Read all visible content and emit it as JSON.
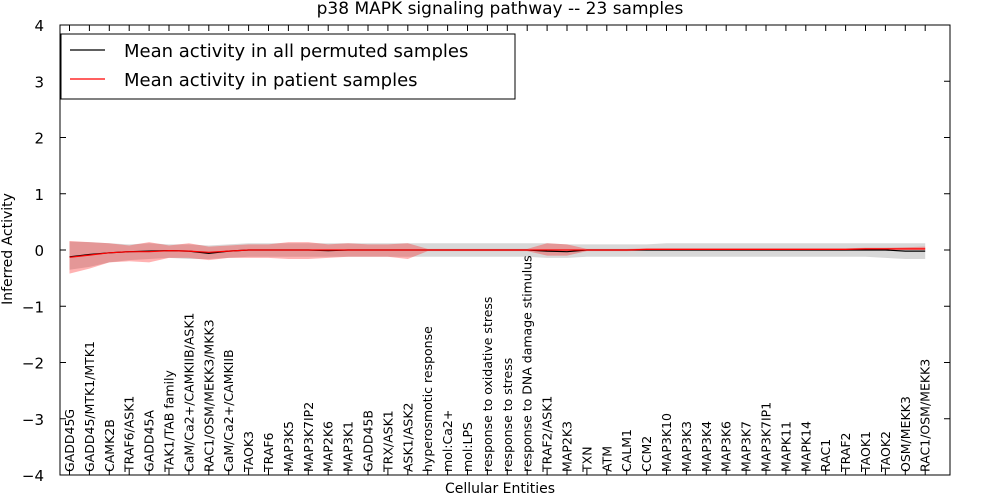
{
  "chart_data": {
    "type": "line",
    "title": "p38 MAPK signaling pathway -- 23 samples",
    "xlabel": "Cellular Entities",
    "ylabel": "Inferred Activity",
    "ylim": [
      -4,
      4
    ],
    "yticks": [
      4,
      3,
      2,
      1,
      0,
      -1,
      -2,
      -3,
      -4
    ],
    "ytick_labels": [
      "4",
      "3",
      "2",
      "1",
      "0",
      "−1",
      "−2",
      "−3",
      "−4"
    ],
    "grid": false,
    "legend_position": "top-left",
    "categories": [
      "GADD45G",
      "GADD45/MTK1/MTK1",
      "CAMK2B",
      "TRAF6/ASK1",
      "GADD45A",
      "TAK1/TAB family",
      "CaM/Ca2+/CAMKIIB/ASK1",
      "RAC1/OSM/MEKK3/MKK3",
      "CaM/Ca2+/CAMKIIB",
      "TAOK3",
      "TRAF6",
      "MAP3K5",
      "MAP3K7IP2",
      "MAP2K6",
      "MAP3K1",
      "GADD45B",
      "TRX/ASK1",
      "ASK1/ASK2",
      "hyperosmotic response",
      "mol:Ca2+",
      "mol:LPS",
      "response to oxidative stress",
      "response to stress",
      "response to DNA damage stimulus",
      "TRAF2/ASK1",
      "MAP2K3",
      "TXN",
      "ATM",
      "CALM1",
      "CCM2",
      "MAP3K10",
      "MAP3K3",
      "MAP3K4",
      "MAP3K6",
      "MAP3K7",
      "MAP3K7IP1",
      "MAPK11",
      "MAPK14",
      "RAC1",
      "TRAF2",
      "TAOK1",
      "TAOK2",
      "OSM/MEKK3",
      "RAC1/OSM/MEKK3"
    ],
    "series": [
      {
        "name": "Mean activity in all permuted samples",
        "color": "#000000",
        "band_color": "#c8c8c8",
        "values": [
          -0.12,
          -0.08,
          -0.05,
          -0.03,
          -0.02,
          -0.01,
          -0.02,
          -0.06,
          -0.02,
          0.0,
          0.0,
          0.0,
          0.0,
          -0.01,
          0.0,
          0.0,
          0.0,
          0.0,
          0.0,
          0.0,
          0.0,
          0.0,
          0.0,
          0.0,
          -0.02,
          -0.03,
          0.0,
          0.0,
          0.0,
          0.0,
          0.0,
          0.0,
          0.0,
          0.0,
          0.0,
          0.0,
          0.0,
          0.0,
          0.0,
          0.0,
          0.0,
          0.0,
          -0.02,
          -0.02
        ],
        "upper": [
          0.15,
          0.14,
          0.12,
          0.1,
          0.12,
          0.1,
          0.1,
          0.08,
          0.1,
          0.12,
          0.12,
          0.12,
          0.12,
          0.12,
          0.12,
          0.12,
          0.12,
          0.12,
          0.12,
          0.12,
          0.12,
          0.12,
          0.12,
          0.12,
          0.12,
          0.1,
          0.1,
          0.1,
          0.1,
          0.1,
          0.12,
          0.12,
          0.12,
          0.12,
          0.12,
          0.12,
          0.12,
          0.12,
          0.12,
          0.12,
          0.12,
          0.12,
          0.12,
          0.12
        ],
        "lower": [
          -0.35,
          -0.3,
          -0.22,
          -0.18,
          -0.16,
          -0.14,
          -0.16,
          -0.16,
          -0.14,
          -0.12,
          -0.12,
          -0.12,
          -0.12,
          -0.12,
          -0.12,
          -0.12,
          -0.12,
          -0.12,
          -0.12,
          -0.12,
          -0.12,
          -0.12,
          -0.12,
          -0.12,
          -0.14,
          -0.14,
          -0.12,
          -0.12,
          -0.12,
          -0.12,
          -0.12,
          -0.12,
          -0.12,
          -0.12,
          -0.12,
          -0.12,
          -0.12,
          -0.12,
          -0.12,
          -0.12,
          -0.12,
          -0.14,
          -0.16,
          -0.16
        ]
      },
      {
        "name": "Mean activity in patient samples",
        "color": "#ff0000",
        "band_color": "#ff0000",
        "values": [
          -0.13,
          -0.09,
          -0.05,
          -0.03,
          -0.03,
          -0.01,
          -0.02,
          -0.04,
          -0.02,
          0.0,
          0.0,
          0.0,
          0.0,
          0.0,
          0.0,
          0.0,
          0.0,
          0.0,
          0.0,
          0.0,
          0.0,
          0.0,
          0.0,
          0.0,
          0.0,
          0.0,
          0.0,
          0.0,
          0.0,
          0.01,
          0.01,
          0.01,
          0.01,
          0.01,
          0.01,
          0.01,
          0.01,
          0.01,
          0.01,
          0.01,
          0.02,
          0.02,
          0.02,
          0.02
        ],
        "upper": [
          0.16,
          0.14,
          0.12,
          0.08,
          0.14,
          0.08,
          0.12,
          0.06,
          0.08,
          0.1,
          0.1,
          0.14,
          0.14,
          0.1,
          0.12,
          0.1,
          0.1,
          0.12,
          0.02,
          0.02,
          0.02,
          0.02,
          0.02,
          0.02,
          0.12,
          0.1,
          0.02,
          0.02,
          0.02,
          0.03,
          0.03,
          0.03,
          0.03,
          0.03,
          0.03,
          0.03,
          0.03,
          0.03,
          0.03,
          0.03,
          0.04,
          0.04,
          0.05,
          0.06
        ],
        "lower": [
          -0.42,
          -0.33,
          -0.22,
          -0.2,
          -0.22,
          -0.14,
          -0.14,
          -0.18,
          -0.14,
          -0.14,
          -0.14,
          -0.16,
          -0.16,
          -0.14,
          -0.12,
          -0.12,
          -0.12,
          -0.16,
          -0.02,
          -0.02,
          -0.02,
          -0.02,
          -0.02,
          -0.02,
          -0.1,
          -0.1,
          -0.02,
          -0.02,
          -0.02,
          -0.01,
          -0.01,
          -0.01,
          -0.01,
          -0.01,
          -0.01,
          -0.01,
          -0.01,
          -0.01,
          -0.01,
          -0.01,
          0.0,
          0.0,
          0.0,
          0.0
        ]
      }
    ]
  }
}
